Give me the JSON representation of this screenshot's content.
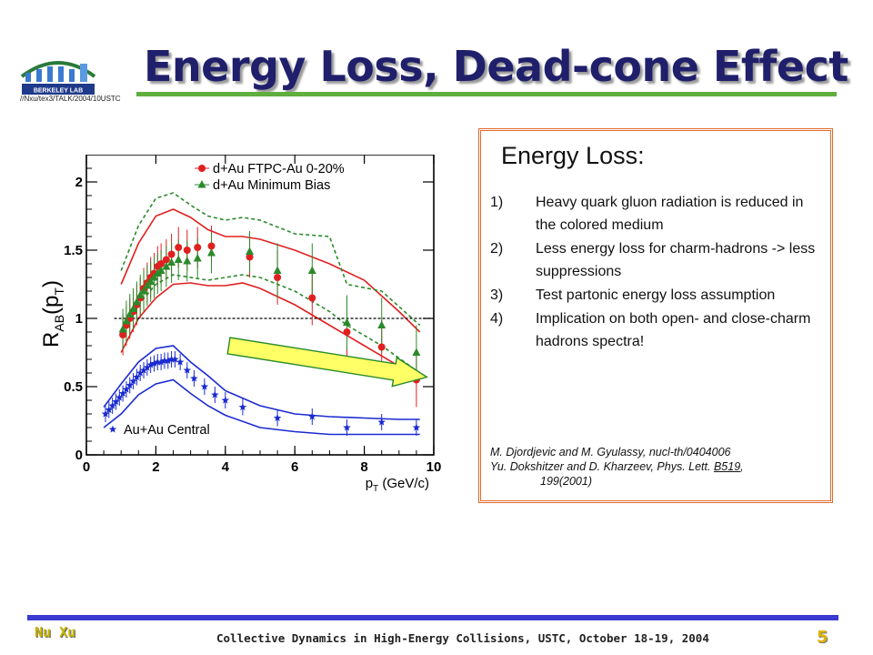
{
  "header": {
    "title": "Energy Loss, Dead-cone Effect",
    "file_path": "//Nxu/tex3/TALK/2004/10USTC",
    "logo_text": "BERKELEY LAB"
  },
  "chart_data": {
    "type": "scatter",
    "xlabel": "p_T (GeV/c)",
    "ylabel": "R_AB(p_T)",
    "xlim": [
      0,
      10
    ],
    "ylim": [
      0,
      2.2
    ],
    "x_ticks": [
      "0",
      "2",
      "4",
      "6",
      "8",
      "10"
    ],
    "y_ticks": [
      "0",
      "0.5",
      "1",
      "1.5",
      "2"
    ],
    "reference_line": 1,
    "series": [
      {
        "name": "d+Au FTPC-Au 0-20%",
        "color": "#e02020",
        "marker": "circle",
        "points": [
          {
            "x": 1.05,
            "y": 0.88
          },
          {
            "x": 1.15,
            "y": 0.95
          },
          {
            "x": 1.25,
            "y": 1.0
          },
          {
            "x": 1.35,
            "y": 1.05
          },
          {
            "x": 1.45,
            "y": 1.1
          },
          {
            "x": 1.55,
            "y": 1.15
          },
          {
            "x": 1.65,
            "y": 1.22
          },
          {
            "x": 1.75,
            "y": 1.26
          },
          {
            "x": 1.85,
            "y": 1.3
          },
          {
            "x": 1.95,
            "y": 1.33
          },
          {
            "x": 2.05,
            "y": 1.38
          },
          {
            "x": 2.15,
            "y": 1.4
          },
          {
            "x": 2.3,
            "y": 1.43
          },
          {
            "x": 2.45,
            "y": 1.47
          },
          {
            "x": 2.65,
            "y": 1.52
          },
          {
            "x": 2.9,
            "y": 1.5
          },
          {
            "x": 3.2,
            "y": 1.52
          },
          {
            "x": 3.6,
            "y": 1.53
          },
          {
            "x": 4.7,
            "y": 1.45
          },
          {
            "x": 5.5,
            "y": 1.3
          },
          {
            "x": 6.5,
            "y": 1.15
          },
          {
            "x": 7.5,
            "y": 0.9
          },
          {
            "x": 8.5,
            "y": 0.79
          },
          {
            "x": 9.5,
            "y": 0.55
          }
        ]
      },
      {
        "name": "d+Au Minimum Bias",
        "color": "#2a8a2a",
        "marker": "triangle",
        "points": [
          {
            "x": 1.05,
            "y": 0.92
          },
          {
            "x": 1.15,
            "y": 0.98
          },
          {
            "x": 1.25,
            "y": 1.03
          },
          {
            "x": 1.35,
            "y": 1.07
          },
          {
            "x": 1.45,
            "y": 1.12
          },
          {
            "x": 1.55,
            "y": 1.17
          },
          {
            "x": 1.65,
            "y": 1.2
          },
          {
            "x": 1.75,
            "y": 1.24
          },
          {
            "x": 1.85,
            "y": 1.27
          },
          {
            "x": 1.95,
            "y": 1.3
          },
          {
            "x": 2.05,
            "y": 1.33
          },
          {
            "x": 2.15,
            "y": 1.35
          },
          {
            "x": 2.3,
            "y": 1.38
          },
          {
            "x": 2.45,
            "y": 1.41
          },
          {
            "x": 2.65,
            "y": 1.43
          },
          {
            "x": 2.9,
            "y": 1.42
          },
          {
            "x": 3.2,
            "y": 1.44
          },
          {
            "x": 3.6,
            "y": 1.48
          },
          {
            "x": 4.7,
            "y": 1.49
          },
          {
            "x": 5.5,
            "y": 1.35
          },
          {
            "x": 6.5,
            "y": 1.35
          },
          {
            "x": 7.5,
            "y": 0.97
          },
          {
            "x": 8.5,
            "y": 0.95
          },
          {
            "x": 9.5,
            "y": 0.75
          }
        ]
      },
      {
        "name": "Au+Au Central",
        "color": "#1a2ad0",
        "marker": "star",
        "points": [
          {
            "x": 0.55,
            "y": 0.3
          },
          {
            "x": 0.65,
            "y": 0.33
          },
          {
            "x": 0.75,
            "y": 0.36
          },
          {
            "x": 0.85,
            "y": 0.39
          },
          {
            "x": 0.95,
            "y": 0.42
          },
          {
            "x": 1.05,
            "y": 0.45
          },
          {
            "x": 1.15,
            "y": 0.48
          },
          {
            "x": 1.25,
            "y": 0.51
          },
          {
            "x": 1.35,
            "y": 0.54
          },
          {
            "x": 1.45,
            "y": 0.57
          },
          {
            "x": 1.55,
            "y": 0.6
          },
          {
            "x": 1.65,
            "y": 0.62
          },
          {
            "x": 1.75,
            "y": 0.64
          },
          {
            "x": 1.85,
            "y": 0.66
          },
          {
            "x": 1.95,
            "y": 0.67
          },
          {
            "x": 2.05,
            "y": 0.68
          },
          {
            "x": 2.15,
            "y": 0.68
          },
          {
            "x": 2.25,
            "y": 0.69
          },
          {
            "x": 2.35,
            "y": 0.69
          },
          {
            "x": 2.45,
            "y": 0.7
          },
          {
            "x": 2.55,
            "y": 0.7
          },
          {
            "x": 2.7,
            "y": 0.68
          },
          {
            "x": 2.9,
            "y": 0.62
          },
          {
            "x": 3.1,
            "y": 0.56
          },
          {
            "x": 3.4,
            "y": 0.5
          },
          {
            "x": 3.7,
            "y": 0.44
          },
          {
            "x": 4.0,
            "y": 0.4
          },
          {
            "x": 4.5,
            "y": 0.35
          },
          {
            "x": 5.5,
            "y": 0.27
          },
          {
            "x": 6.5,
            "y": 0.28
          },
          {
            "x": 7.5,
            "y": 0.2
          },
          {
            "x": 8.5,
            "y": 0.24
          },
          {
            "x": 9.5,
            "y": 0.2
          }
        ]
      }
    ],
    "bands": [
      {
        "color": "#e02020",
        "style": "solid",
        "upper": [
          [
            1.0,
            1.25
          ],
          [
            1.5,
            1.55
          ],
          [
            2.0,
            1.75
          ],
          [
            2.5,
            1.8
          ],
          [
            3.0,
            1.74
          ],
          [
            3.5,
            1.65
          ],
          [
            4.0,
            1.6
          ],
          [
            4.5,
            1.6
          ],
          [
            5.0,
            1.58
          ],
          [
            6.0,
            1.5
          ],
          [
            7.0,
            1.4
          ],
          [
            8.0,
            1.28
          ],
          [
            9.0,
            1.05
          ],
          [
            9.6,
            0.9
          ]
        ],
        "lower": [
          [
            1.0,
            0.75
          ],
          [
            1.5,
            1.0
          ],
          [
            2.0,
            1.15
          ],
          [
            2.5,
            1.25
          ],
          [
            3.0,
            1.26
          ],
          [
            3.5,
            1.24
          ],
          [
            4.0,
            1.24
          ],
          [
            4.5,
            1.26
          ],
          [
            5.0,
            1.22
          ],
          [
            6.0,
            1.1
          ],
          [
            7.0,
            0.95
          ],
          [
            8.0,
            0.8
          ],
          [
            9.0,
            0.65
          ],
          [
            9.6,
            0.55
          ]
        ]
      },
      {
        "color": "#2a8a2a",
        "style": "dashed",
        "upper": [
          [
            1.0,
            1.35
          ],
          [
            1.5,
            1.68
          ],
          [
            2.0,
            1.88
          ],
          [
            2.5,
            1.92
          ],
          [
            3.0,
            1.83
          ],
          [
            3.5,
            1.75
          ],
          [
            4.0,
            1.72
          ],
          [
            4.5,
            1.74
          ],
          [
            5.0,
            1.72
          ],
          [
            6.0,
            1.62
          ],
          [
            7.0,
            1.6
          ],
          [
            7.5,
            1.25
          ],
          [
            8.5,
            1.2
          ],
          [
            9.6,
            0.95
          ]
        ],
        "lower": [
          [
            1.0,
            0.9
          ],
          [
            1.5,
            1.1
          ],
          [
            2.0,
            1.25
          ],
          [
            2.5,
            1.32
          ],
          [
            3.0,
            1.3
          ],
          [
            3.5,
            1.28
          ],
          [
            4.0,
            1.3
          ],
          [
            4.5,
            1.32
          ],
          [
            5.0,
            1.3
          ],
          [
            6.0,
            1.2
          ],
          [
            7.0,
            1.05
          ],
          [
            7.5,
            0.95
          ],
          [
            8.5,
            0.8
          ],
          [
            9.6,
            0.6
          ]
        ]
      },
      {
        "color": "#1a2ad0",
        "style": "solid",
        "upper": [
          [
            0.5,
            0.35
          ],
          [
            1.0,
            0.52
          ],
          [
            1.5,
            0.68
          ],
          [
            2.0,
            0.78
          ],
          [
            2.5,
            0.8
          ],
          [
            3.0,
            0.68
          ],
          [
            3.5,
            0.58
          ],
          [
            4.0,
            0.47
          ],
          [
            5.0,
            0.36
          ],
          [
            6.0,
            0.3
          ],
          [
            7.0,
            0.28
          ],
          [
            8.0,
            0.27
          ],
          [
            9.0,
            0.26
          ],
          [
            9.6,
            0.26
          ]
        ],
        "lower": [
          [
            0.5,
            0.2
          ],
          [
            1.0,
            0.3
          ],
          [
            1.5,
            0.44
          ],
          [
            2.0,
            0.52
          ],
          [
            2.5,
            0.55
          ],
          [
            3.0,
            0.45
          ],
          [
            3.5,
            0.36
          ],
          [
            4.0,
            0.29
          ],
          [
            5.0,
            0.2
          ],
          [
            6.0,
            0.17
          ],
          [
            7.0,
            0.15
          ],
          [
            8.0,
            0.15
          ],
          [
            9.0,
            0.15
          ],
          [
            9.6,
            0.15
          ]
        ]
      }
    ],
    "arrow": {
      "from": [
        4.1,
        0.8
      ],
      "to": [
        9.8,
        0.57
      ],
      "fill": "#ffff66",
      "stroke": "#2a8a2a"
    }
  },
  "energy_loss": {
    "heading": "Energy Loss:",
    "points": [
      {
        "num": "1)",
        "text": "Heavy quark gluon radiation is reduced in the colored medium"
      },
      {
        "num": "2)",
        "text": "Less energy loss for charm-hadrons -> less suppressions"
      },
      {
        "num": "3)",
        "text": "Test partonic energy loss assumption"
      },
      {
        "num": "4)",
        "text": "Implication on both open- and close-charm hadrons spectra!"
      }
    ],
    "refs": {
      "ref1": "M. Djordjevic and M. Gyulassy, nucl-th/0404006",
      "ref2_pre": "Yu. Dokshitzer and D. Kharzeev, Phys. Lett. ",
      "ref2_vol": "B519",
      "ref2_post": ",",
      "ref2_pages": "199(2001)"
    }
  },
  "footer": {
    "author": "Nu Xu",
    "conference": "Collective Dynamics in High-Energy Collisions, USTC, October 18-19, 2004",
    "page": "5"
  },
  "colors": {
    "title": "#1f1f6b",
    "title_rule": "#5fae3e",
    "footer_rule": "#3a3ad0",
    "box_border": "#e06a2a",
    "author": "#c8b400",
    "page_number": "#e0b400"
  }
}
